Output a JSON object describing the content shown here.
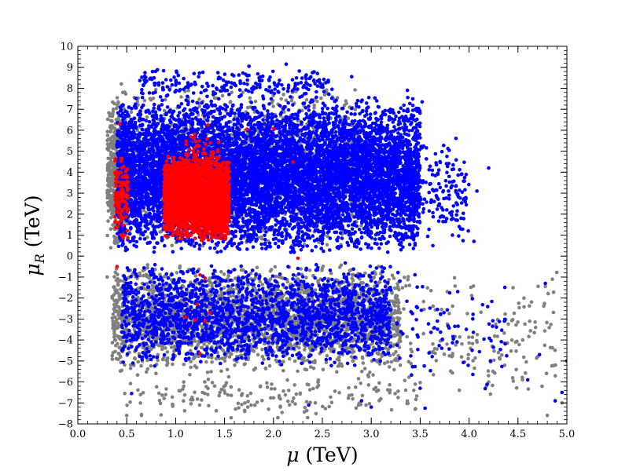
{
  "chart_data": {
    "type": "scatter",
    "xlabel": "μ (TeV)",
    "ylabel": "μ_R (TeV)",
    "xlabel_parts": {
      "symbol": "μ",
      "unit": " (TeV)"
    },
    "ylabel_parts": {
      "symbol": "μ",
      "subscript": "R",
      "unit": " (TeV)"
    },
    "xlim": [
      0.0,
      5.0
    ],
    "ylim": [
      -8,
      10
    ],
    "xticks": [
      "0.0",
      "0.5",
      "1.0",
      "1.5",
      "2.0",
      "2.5",
      "3.0",
      "3.5",
      "4.0",
      "4.5",
      "5.0"
    ],
    "yticks": [
      "−8",
      "−7",
      "−6",
      "−5",
      "−4",
      "−3",
      "−2",
      "−1",
      "0",
      "1",
      "2",
      "3",
      "4",
      "5",
      "6",
      "7",
      "8",
      "9",
      "10"
    ],
    "grid": false,
    "legend": "none",
    "series": [
      {
        "color": "#808080",
        "regions": [
          {
            "x": [
              0.33,
              2.9
            ],
            "y": [
              0.2,
              8.3
            ],
            "n": 1600
          },
          {
            "x": [
              0.3,
              0.5
            ],
            "y": [
              0.3,
              7.2
            ],
            "n": 400
          },
          {
            "x": [
              0.35,
              3.3
            ],
            "y": [
              -5.6,
              -0.3
            ],
            "n": 2600
          },
          {
            "x": [
              0.45,
              3.5
            ],
            "y": [
              -7.8,
              -5.4
            ],
            "n": 180
          },
          {
            "x": [
              3.3,
              4.9
            ],
            "y": [
              -7.3,
              -0.5
            ],
            "n": 160
          }
        ],
        "points": [
          [
            4.8,
            -7.6
          ],
          [
            4.95,
            -7.0
          ],
          [
            0.5,
            -7.6
          ],
          [
            0.65,
            -7.6
          ],
          [
            1.95,
            -7.3
          ],
          [
            2.35,
            -7.7
          ],
          [
            0.3,
            -1.0
          ],
          [
            3.45,
            -7.3
          ],
          [
            4.3,
            -4.6
          ],
          [
            4.68,
            -3.4
          ],
          [
            3.9,
            -6.4
          ],
          [
            4.2,
            -6.0
          ]
        ]
      },
      {
        "color": "#0000ff",
        "regions": [
          {
            "x": [
              0.4,
              3.5
            ],
            "y": [
              0.1,
              7.6
            ],
            "n": 9000
          },
          {
            "x": [
              0.6,
              2.6
            ],
            "y": [
              7.4,
              9.0
            ],
            "n": 220
          },
          {
            "x": [
              3.5,
              4.0
            ],
            "y": [
              0.5,
              5.8
            ],
            "n": 140
          },
          {
            "x": [
              0.45,
              3.2
            ],
            "y": [
              -5.3,
              -0.3
            ],
            "n": 2100
          },
          {
            "x": [
              3.2,
              4.4
            ],
            "y": [
              -6.5,
              -0.5
            ],
            "n": 90
          }
        ],
        "points": [
          [
            2.13,
            9.15
          ],
          [
            1.75,
            9.05
          ],
          [
            2.8,
            8.55
          ],
          [
            3.37,
            7.9
          ],
          [
            3.52,
            7.35
          ],
          [
            4.2,
            4.2
          ],
          [
            4.08,
            3.1
          ],
          [
            3.93,
            3.05
          ],
          [
            3.63,
            0.5
          ],
          [
            4.05,
            0.7
          ],
          [
            3.82,
            1.75
          ],
          [
            3.0,
            -7.2
          ],
          [
            3.55,
            -7.25
          ],
          [
            4.78,
            -1.3
          ],
          [
            5.0,
            -5.0
          ],
          [
            4.95,
            -6.5
          ],
          [
            4.88,
            -6.9
          ],
          [
            4.6,
            -5.9
          ],
          [
            4.72,
            -4.7
          ],
          [
            3.5,
            -6.3
          ],
          [
            0.55,
            -6.55
          ],
          [
            2.36,
            -7.1
          ],
          [
            2.9,
            -6.9
          ]
        ]
      },
      {
        "color": "#ff0000",
        "regions": [
          {
            "x": [
              0.88,
              1.55
            ],
            "y": [
              0.7,
              4.8
            ],
            "n": 2600
          },
          {
            "x": [
              1.1,
              1.45
            ],
            "y": [
              1.2,
              6.0
            ],
            "n": 220
          },
          {
            "x": [
              0.38,
              0.52
            ],
            "y": [
              0.6,
              5.0
            ],
            "n": 120
          }
        ],
        "points": [
          [
            1.73,
            6.05
          ],
          [
            2.0,
            6.08
          ],
          [
            2.2,
            4.48
          ],
          [
            0.4,
            -0.5
          ],
          [
            0.43,
            6.3
          ],
          [
            1.25,
            -4.65
          ],
          [
            1.35,
            -2.7
          ],
          [
            1.1,
            -2.9
          ],
          [
            1.22,
            -2.3
          ],
          [
            1.2,
            -3.05
          ],
          [
            1.3,
            -3.1
          ],
          [
            1.3,
            -1.05
          ],
          [
            1.25,
            -0.9
          ],
          [
            2.25,
            -0.1
          ],
          [
            1.33,
            6.25
          ]
        ]
      }
    ]
  }
}
